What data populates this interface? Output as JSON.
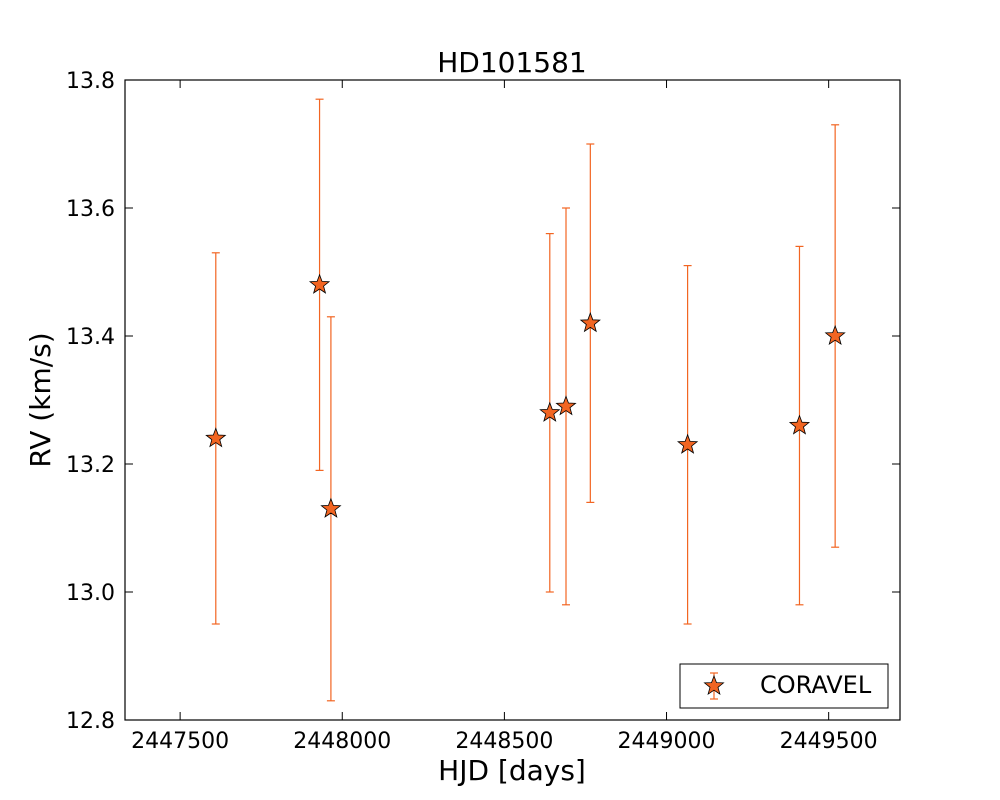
{
  "chart_data": {
    "type": "scatter",
    "title": "HD101581",
    "xlabel": "HJD [days]",
    "ylabel": "RV (km/s)",
    "xlim": [
      2447330,
      2449720
    ],
    "ylim": [
      12.8,
      13.8
    ],
    "xticks": [
      2447500,
      2448000,
      2448500,
      2449000,
      2449500
    ],
    "xtick_labels": [
      "2447500",
      "2448000",
      "2448500",
      "2449000",
      "2449500"
    ],
    "yticks": [
      12.8,
      13.0,
      13.2,
      13.4,
      13.6,
      13.8
    ],
    "ytick_labels": [
      "12.8",
      "13.0",
      "13.2",
      "13.4",
      "13.6",
      "13.8"
    ],
    "grid": false,
    "legend_position": "lower-right",
    "series": [
      {
        "name": "CORAVEL",
        "marker": "star",
        "color": "#f26522",
        "errorbar_color": "#f26522",
        "points": [
          {
            "x": 2447610,
            "y": 13.24,
            "yerr": 0.29
          },
          {
            "x": 2447930,
            "y": 13.48,
            "yerr": 0.29
          },
          {
            "x": 2447965,
            "y": 13.13,
            "yerr": 0.3
          },
          {
            "x": 2448640,
            "y": 13.28,
            "yerr": 0.28
          },
          {
            "x": 2448690,
            "y": 13.29,
            "yerr": 0.31
          },
          {
            "x": 2448765,
            "y": 13.42,
            "yerr": 0.28
          },
          {
            "x": 2449065,
            "y": 13.23,
            "yerr": 0.28
          },
          {
            "x": 2449410,
            "y": 13.26,
            "yerr": 0.28
          },
          {
            "x": 2449520,
            "y": 13.4,
            "yerr": 0.33
          }
        ]
      }
    ]
  }
}
